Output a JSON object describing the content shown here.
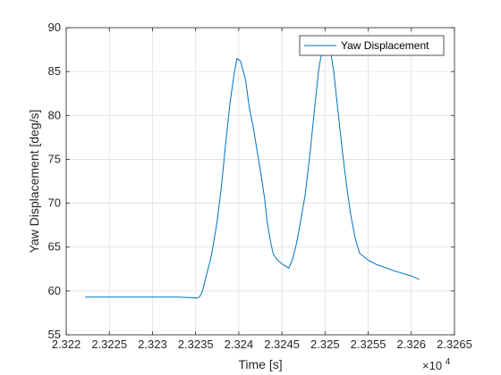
{
  "chart_data": {
    "type": "line",
    "xlabel": "Time [s]",
    "ylabel": "Yaw Displacement [deg/s]",
    "x_multiplier_label": "×10",
    "x_multiplier_exponent": "4",
    "xlim": [
      2.322,
      2.3265
    ],
    "ylim": [
      55,
      90
    ],
    "x_ticks": [
      2.322,
      2.3225,
      2.323,
      2.3235,
      2.324,
      2.3245,
      2.325,
      2.3255,
      2.326,
      2.3265
    ],
    "x_tick_labels": [
      "2.322",
      "2.3225",
      "2.323",
      "2.3235",
      "2.324",
      "2.3245",
      "2.325",
      "2.3255",
      "2.326",
      "2.3265"
    ],
    "y_ticks": [
      55,
      60,
      65,
      70,
      75,
      80,
      85,
      90
    ],
    "y_tick_labels": [
      "55",
      "60",
      "65",
      "70",
      "75",
      "80",
      "85",
      "90"
    ],
    "grid": true,
    "legend_position": "top-right",
    "series": [
      {
        "name": "Yaw Displacement",
        "color": "#0072bd",
        "x": [
          2.32222,
          2.3228,
          2.3233,
          2.32353,
          2.32355,
          2.32358,
          2.3236,
          2.32363,
          2.32367,
          2.3237,
          2.32375,
          2.3238,
          2.32385,
          2.3239,
          2.32395,
          2.32398,
          2.32402,
          2.32408,
          2.32412,
          2.32417,
          2.32422,
          2.32427,
          2.3243,
          2.32433,
          2.32437,
          2.3244,
          2.32445,
          2.3245,
          2.32458,
          2.32462,
          2.32466,
          2.3247,
          2.32477,
          2.32483,
          2.32488,
          2.32493,
          2.32498,
          2.32502,
          2.32506,
          2.3251,
          2.32515,
          2.3252,
          2.32525,
          2.3253,
          2.32535,
          2.3254,
          2.3255,
          2.3256,
          2.3258,
          2.326,
          2.32609
        ],
        "y": [
          59.3,
          59.3,
          59.3,
          59.2,
          59.4,
          60.0,
          60.8,
          62.0,
          63.5,
          65.0,
          68.0,
          72.0,
          77.0,
          81.5,
          85.0,
          86.5,
          86.2,
          84.0,
          81.0,
          78.5,
          75.5,
          72.5,
          70.5,
          67.8,
          65.5,
          64.2,
          63.5,
          63.1,
          62.6,
          63.5,
          65.0,
          67.0,
          71.0,
          76.0,
          81.0,
          85.5,
          88.0,
          88.6,
          87.5,
          85.0,
          80.5,
          76.0,
          72.0,
          68.5,
          66.0,
          64.3,
          63.5,
          63.0,
          62.3,
          61.7,
          61.3
        ]
      }
    ]
  }
}
